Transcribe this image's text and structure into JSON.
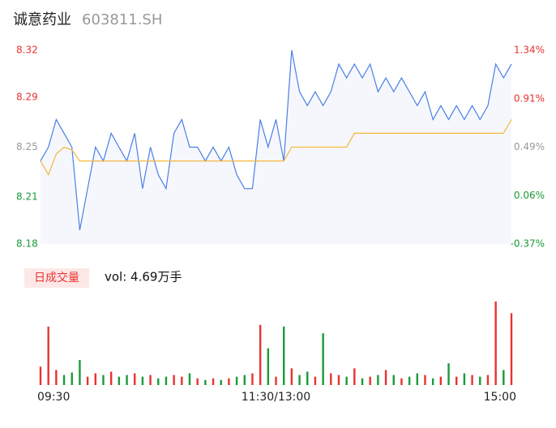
{
  "header": {
    "name": "诚意药业",
    "code": "603811.SH"
  },
  "chart_data": {
    "type": "line",
    "categories": [
      "09:30",
      null,
      null,
      null,
      null,
      null,
      null,
      null,
      null,
      null,
      null,
      null,
      null,
      null,
      null,
      null,
      null,
      null,
      null,
      null,
      null,
      null,
      null,
      null,
      null,
      null,
      null,
      null,
      null,
      null,
      "11:30/13:00",
      null,
      null,
      null,
      null,
      null,
      null,
      null,
      null,
      null,
      null,
      null,
      null,
      null,
      null,
      null,
      null,
      null,
      null,
      null,
      null,
      null,
      null,
      null,
      null,
      null,
      null,
      null,
      null,
      null,
      "15:00"
    ],
    "series": [
      {
        "color": "#4a7fe6",
        "values": [
          8.24,
          8.25,
          8.27,
          8.26,
          8.25,
          8.19,
          8.22,
          8.25,
          8.24,
          8.26,
          8.25,
          8.24,
          8.26,
          8.22,
          8.25,
          8.23,
          8.22,
          8.26,
          8.27,
          8.25,
          8.25,
          8.24,
          8.25,
          8.24,
          8.25,
          8.23,
          8.22,
          8.22,
          8.27,
          8.25,
          8.27,
          8.24,
          8.32,
          8.29,
          8.28,
          8.29,
          8.28,
          8.29,
          8.31,
          8.3,
          8.31,
          8.3,
          8.31,
          8.29,
          8.3,
          8.29,
          8.3,
          8.29,
          8.28,
          8.29,
          8.27,
          8.28,
          8.27,
          8.28,
          8.27,
          8.28,
          8.27,
          8.28,
          8.31,
          8.3,
          8.31
        ]
      },
      {
        "color": "#f5b73d",
        "values": [
          8.24,
          8.23,
          8.245,
          8.25,
          8.248,
          8.24,
          8.24,
          8.24,
          8.24,
          8.24,
          8.24,
          8.24,
          8.24,
          8.24,
          8.24,
          8.24,
          8.24,
          8.24,
          8.24,
          8.24,
          8.24,
          8.24,
          8.24,
          8.24,
          8.24,
          8.24,
          8.24,
          8.24,
          8.24,
          8.24,
          8.24,
          8.24,
          8.25,
          8.25,
          8.25,
          8.25,
          8.25,
          8.25,
          8.25,
          8.25,
          8.26,
          8.26,
          8.26,
          8.26,
          8.26,
          8.26,
          8.26,
          8.26,
          8.26,
          8.26,
          8.26,
          8.26,
          8.26,
          8.26,
          8.26,
          8.26,
          8.26,
          8.26,
          8.26,
          8.26,
          8.27
        ]
      }
    ],
    "ylim": [
      8.18,
      8.32
    ],
    "yticks": [
      8.18,
      {
        "value": 8.214,
        "label": "8.21"
      },
      8.25,
      {
        "value": 8.286,
        "label": "8.29"
      },
      8.32
    ],
    "y2lim": [
      -0.37,
      1.34
    ],
    "y2ticks": [
      {
        "value": -0.37,
        "label": "-0.37%"
      },
      {
        "value": 0.0575,
        "label": "0.06%"
      },
      {
        "value": 0.485,
        "label": "0.49%"
      },
      {
        "value": 0.9125,
        "label": "0.91%"
      },
      {
        "value": 1.34,
        "label": "1.34%"
      }
    ],
    "up_color": "#e8322f",
    "down_color": "#1a9a3a",
    "flat_color": "#999999",
    "area_color": "#f5f7fd",
    "volume": {
      "label": "日成交量",
      "summary": "vol: 4.69万手",
      "values": [
        22,
        70,
        18,
        12,
        15,
        30,
        10,
        14,
        12,
        16,
        10,
        12,
        14,
        10,
        12,
        8,
        10,
        12,
        10,
        14,
        8,
        6,
        8,
        6,
        8,
        10,
        12,
        14,
        72,
        44,
        10,
        70,
        20,
        12,
        16,
        10,
        62,
        14,
        12,
        10,
        20,
        8,
        10,
        12,
        18,
        12,
        8,
        10,
        14,
        12,
        8,
        10,
        26,
        10,
        14,
        12,
        10,
        12,
        100,
        18,
        86
      ]
    }
  }
}
